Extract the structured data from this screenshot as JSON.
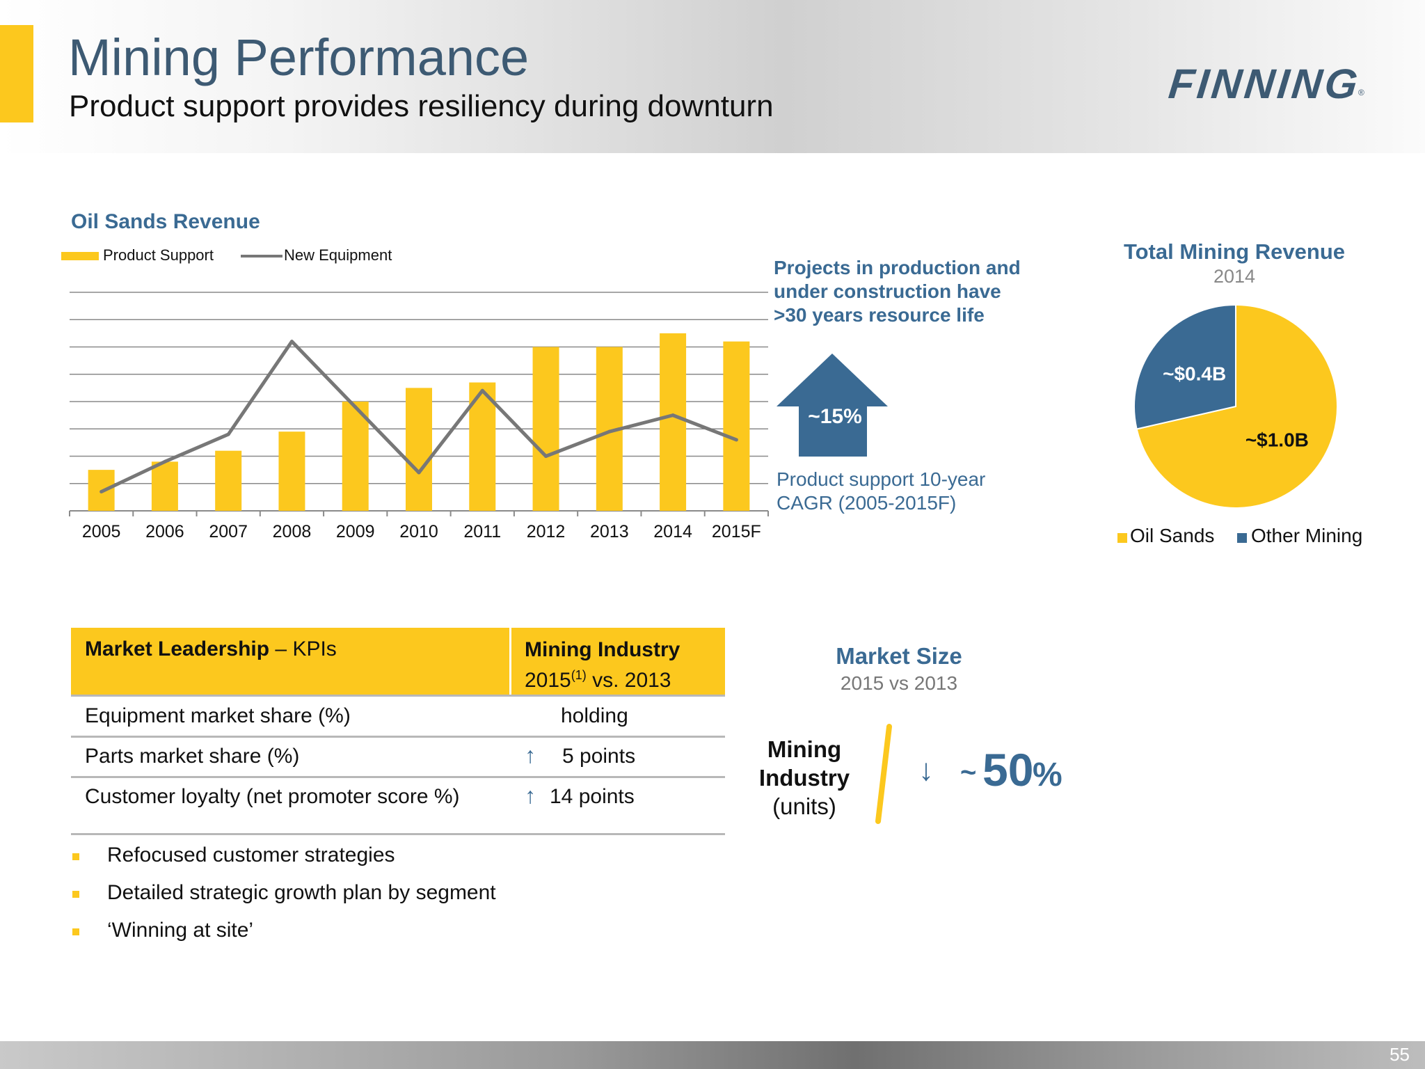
{
  "header": {
    "title": "Mining Performance",
    "subtitle": "Product support provides resiliency during downturn",
    "logo_text": "FINNING",
    "logo_mark": "®"
  },
  "colors": {
    "accent_yellow": "#fcc81e",
    "brand_blue": "#3a6a93",
    "line_gray": "#777777"
  },
  "oil_sands": {
    "title": "Oil Sands Revenue",
    "legend": [
      "Product Support",
      "New Equipment"
    ]
  },
  "callout": {
    "heading_lines": [
      "Projects in production and",
      "under construction have",
      ">30 years resource life"
    ],
    "arrow_value": "~15%",
    "footnote_lines": [
      "Product support 10-year",
      "CAGR (2005-2015F)"
    ]
  },
  "pie": {
    "title": "Total Mining Revenue",
    "year": "2014",
    "legend": [
      "Oil Sands",
      "Other Mining"
    ]
  },
  "chart_data": [
    {
      "type": "bar",
      "title": "Oil Sands Revenue",
      "categories": [
        "2005",
        "2006",
        "2007",
        "2008",
        "2009",
        "2010",
        "2011",
        "2012",
        "2013",
        "2014",
        "2015F"
      ],
      "series": [
        {
          "name": "Product Support",
          "kind": "bar",
          "values": [
            1.5,
            1.8,
            2.2,
            2.9,
            4.0,
            4.5,
            4.7,
            6.0,
            6.0,
            6.5,
            6.2
          ]
        },
        {
          "name": "New Equipment",
          "kind": "line",
          "values": [
            0.7,
            1.8,
            2.8,
            6.2,
            3.8,
            1.4,
            4.4,
            2.0,
            2.9,
            3.5,
            2.6
          ]
        }
      ],
      "ylim": [
        0,
        8
      ],
      "grid": true,
      "legend_position": "top-left"
    },
    {
      "type": "pie",
      "title": "Total Mining Revenue",
      "subtitle": "2014",
      "labels": [
        "Oil Sands",
        "Other Mining"
      ],
      "values": [
        1.0,
        0.4
      ],
      "data_labels": [
        "~$1.0B",
        "~$0.4B"
      ],
      "colors": [
        "#fcc81e",
        "#3a6a93"
      ],
      "legend_position": "bottom"
    }
  ],
  "kpi": {
    "header_left_bold": "Market Leadership",
    "header_left_rest": " – KPIs",
    "header_right_line1": "Mining Industry",
    "header_right_year": "2015",
    "header_right_note": "(1)",
    "header_right_rest": " vs. 2013",
    "rows": [
      {
        "label": "Equipment market share (%)",
        "value": "holding",
        "arrow": ""
      },
      {
        "label": "Parts market share (%)",
        "value": "5 points",
        "arrow": "↑"
      },
      {
        "label": "Customer loyalty (net promoter score %)",
        "value": "14 points",
        "arrow": "↑"
      }
    ]
  },
  "bullets": [
    "Refocused customer strategies",
    "Detailed strategic growth plan by segment",
    "‘Winning at site’"
  ],
  "market_size": {
    "title": "Market Size",
    "subtitle": "2015 vs 2013",
    "label_line1": "Mining",
    "label_line2": "Industry",
    "label_line3": "(units)",
    "arrow": "↓",
    "tilde": "~",
    "value": "50",
    "unit": "%"
  },
  "footer": {
    "page_number": "55"
  }
}
